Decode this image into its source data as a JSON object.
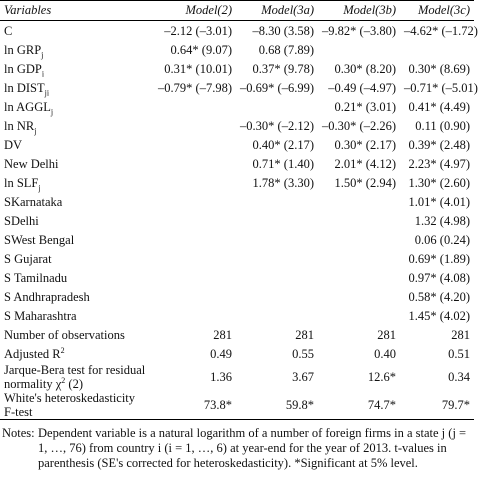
{
  "table": {
    "header": [
      "Variables",
      "Model(2)",
      "Model(3a)",
      "Model(3b)",
      "Model(3c)"
    ],
    "rows": [
      {
        "label": {
          "text": "C"
        },
        "cells": [
          "–2.12 (–3.01)",
          "–8.30 (3.58)",
          "–9.82* (–3.80)",
          "–4.62* (–1.72)"
        ]
      },
      {
        "label": {
          "text": "ln GRP",
          "sub": "j"
        },
        "cells": [
          "0.64* (9.07)",
          "0.68 (7.89)",
          null,
          null
        ]
      },
      {
        "label": {
          "text": "ln GDP",
          "sub": "i"
        },
        "cells": [
          "0.31* (10.01)",
          "0.37* (9.78)",
          "0.30* (8.20)",
          "0.30* (8.69)"
        ]
      },
      {
        "label": {
          "text": "ln DIST",
          "sub": "ji"
        },
        "cells": [
          "–0.79* (–7.98)",
          "–0.69* (–6.99)",
          "–0.49 (–4.97)",
          "–0.71* (–5.01)"
        ]
      },
      {
        "label": {
          "text": "ln AGGL",
          "sub": "j"
        },
        "cells": [
          null,
          null,
          "0.21* (3.01)",
          "0.41* (4.49)"
        ]
      },
      {
        "label": {
          "text": "ln NR",
          "sub": "j"
        },
        "cells": [
          null,
          "–0.30* (–2.12)",
          "–0.30* (–2.26)",
          "0.11 (0.90)"
        ]
      },
      {
        "label": {
          "text": "DV"
        },
        "cells": [
          null,
          "0.40* (2.17)",
          "0.30* (2.17)",
          "0.39* (2.48)"
        ]
      },
      {
        "label": {
          "text": "New Delhi"
        },
        "cells": [
          null,
          "0.71* (1.40)",
          "2.01* (4.12)",
          "2.23* (4.97)"
        ]
      },
      {
        "label": {
          "text": "ln SLF",
          "sub": "j"
        },
        "cells": [
          null,
          "1.78* (3.30)",
          "1.50* (2.94)",
          "1.30* (2.60)"
        ]
      },
      {
        "label": {
          "text": "SKarnataka"
        },
        "cells": [
          null,
          null,
          null,
          "1.01* (4.01)"
        ]
      },
      {
        "label": {
          "text": "SDelhi"
        },
        "cells": [
          null,
          null,
          null,
          "1.32 (4.98)"
        ]
      },
      {
        "label": {
          "text": "SWest Bengal"
        },
        "cells": [
          null,
          null,
          null,
          "0.06 (0.24)"
        ]
      },
      {
        "label": {
          "text": "S Gujarat"
        },
        "cells": [
          null,
          null,
          null,
          "0.69* (1.89)"
        ]
      },
      {
        "label": {
          "text": "S Tamilnadu"
        },
        "cells": [
          null,
          null,
          null,
          "0.97* (4.08)"
        ]
      },
      {
        "label": {
          "text": "S Andhrapradesh"
        },
        "cells": [
          null,
          null,
          null,
          "0.58* (4.20)"
        ]
      },
      {
        "label": {
          "text": "S Maharashtra"
        },
        "cells": [
          null,
          null,
          null,
          "1.45* (4.02)"
        ]
      },
      {
        "label": {
          "text": "Number of observations"
        },
        "cells": [
          "281",
          "281",
          "281",
          "281"
        ]
      },
      {
        "label": {
          "text": "Adjusted R",
          "sup": "2"
        },
        "cells": [
          "0.49",
          "0.55",
          "0.40",
          "0.51"
        ]
      },
      {
        "label": {
          "text": "Jarque-Bera test for residual normality χ",
          "sup": "2",
          "after": " (2)"
        },
        "cells": [
          "1.36",
          "3.67",
          "12.6*",
          "0.34"
        ]
      },
      {
        "label": {
          "text": "White's heteroskedasticity F-test"
        },
        "cells": [
          "73.8*",
          "59.8*",
          "74.7*",
          "79.7*"
        ]
      }
    ]
  },
  "notes": {
    "label": "Notes:",
    "text": "Dependent variable is a natural logarithm of a number of foreign firms in a state j (j = 1, …, 76) from country i (i = 1, …, 6) at year-end for the year of 2013. t-values in parenthesis (SE's corrected for heteroskedasticity). *Significant at 5% level."
  }
}
